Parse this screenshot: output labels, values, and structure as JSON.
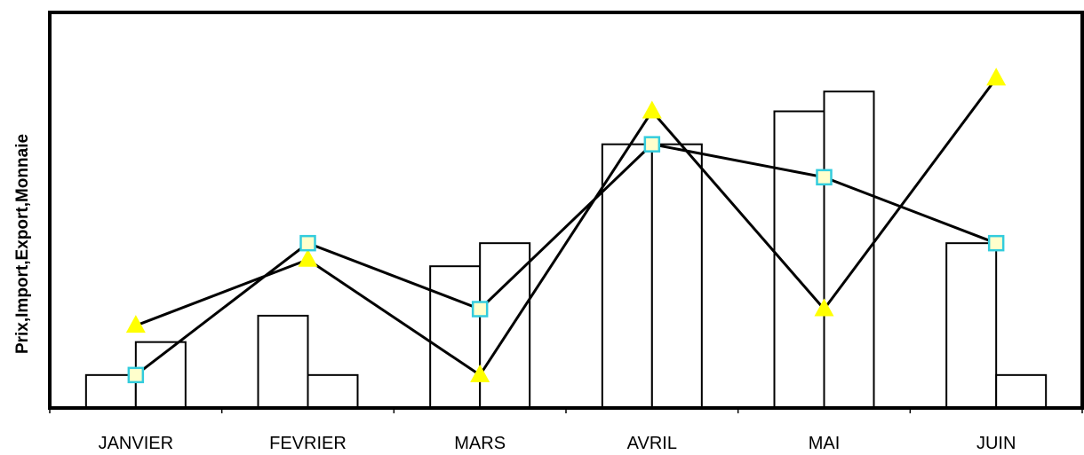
{
  "chart_data": {
    "type": "bar",
    "title": "",
    "xlabel": "",
    "ylabel": "Prix,Import,Export,Monnaie",
    "categories": [
      "JANVIER",
      "FEVRIER",
      "MARS",
      "AVRIL",
      "MAI",
      "JUIN"
    ],
    "ylim": [
      0,
      120
    ],
    "grid": false,
    "legend": "none",
    "bars": [
      {
        "values": [
          10,
          28,
          43,
          80,
          90,
          50
        ]
      },
      {
        "values": [
          20,
          10,
          50,
          80,
          96,
          10
        ]
      }
    ],
    "lines": [
      {
        "marker": "triangle",
        "color": "#ffff00",
        "values": [
          25,
          45,
          10,
          90,
          30,
          100
        ]
      },
      {
        "marker": "square",
        "color": "#ffffcc",
        "values": [
          10,
          50,
          30,
          80,
          70,
          50
        ]
      }
    ]
  }
}
